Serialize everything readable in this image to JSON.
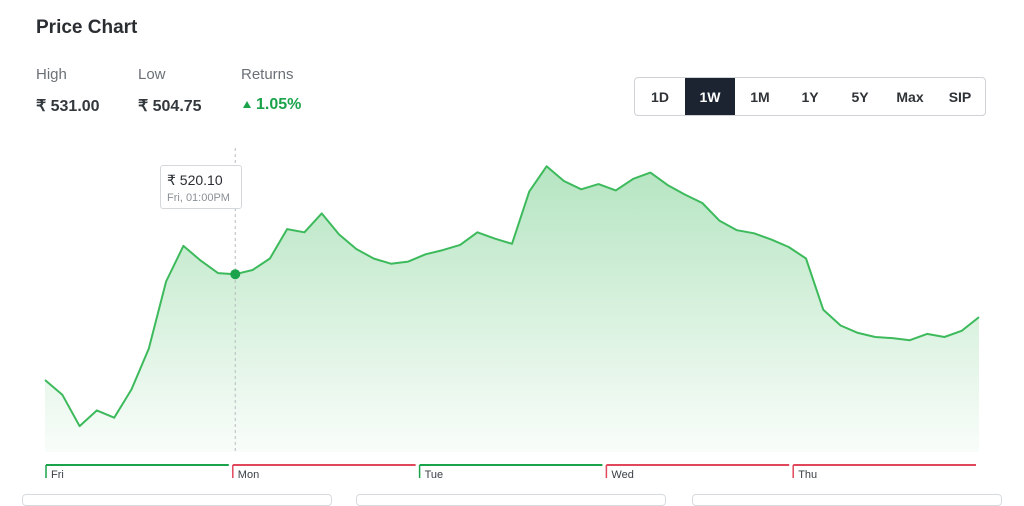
{
  "header": {
    "title": "Price Chart"
  },
  "stats": {
    "high_label": "High",
    "high_value": "₹ 531.00",
    "low_label": "Low",
    "low_value": "₹ 504.75",
    "returns_label": "Returns",
    "returns_value": "1.05%"
  },
  "ranges": [
    "1D",
    "1W",
    "1M",
    "1Y",
    "5Y",
    "Max",
    "SIP"
  ],
  "active_range": "1W",
  "tooltip": {
    "price": "₹ 520.10",
    "time": "Fri, 01:00PM"
  },
  "colors": {
    "line": "#3dba5c",
    "up": "#1aa34a",
    "down": "#e0475b",
    "active_bg": "#1b2430"
  },
  "chart_data": {
    "type": "area",
    "x_labels": [
      "Fri",
      "Mon",
      "Tue",
      "Wed",
      "Thu"
    ],
    "day_direction": [
      "up",
      "down",
      "up",
      "down",
      "down"
    ],
    "ylim": [
      504.75,
      531.0
    ],
    "highlight_index": 11,
    "values": [
      510.0,
      508.6,
      505.6,
      507.1,
      506.4,
      509.1,
      513.0,
      519.4,
      522.8,
      521.4,
      520.2,
      520.1,
      520.5,
      521.6,
      524.4,
      524.1,
      525.9,
      523.9,
      522.5,
      521.6,
      521.1,
      521.3,
      522.0,
      522.4,
      522.9,
      524.1,
      523.5,
      523.0,
      528.0,
      530.4,
      529.0,
      528.2,
      528.7,
      528.1,
      529.2,
      529.8,
      528.6,
      527.7,
      526.9,
      525.2,
      524.3,
      524.0,
      523.4,
      522.7,
      521.6,
      516.7,
      515.2,
      514.5,
      514.1,
      514.0,
      513.8,
      514.4,
      514.1,
      514.7,
      516.0
    ]
  }
}
